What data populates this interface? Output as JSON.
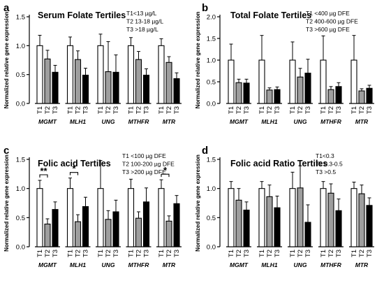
{
  "figure": {
    "ylabel": "Normalized relative gene expression",
    "gene_labels": [
      "MGMT",
      "MLH1",
      "UNG",
      "MTHFR",
      "MTR"
    ],
    "tertile_labels": [
      "T1",
      "T2",
      "T3"
    ],
    "colors": {
      "T1": "#ffffff",
      "T2": "#9e9e9e",
      "T3": "#000000",
      "stroke": "#000000"
    }
  },
  "chart_data": [
    {
      "type": "bar",
      "panel_label": "a",
      "title": "Serum Folate Tertiles",
      "legend_lines": [
        "T1<13 µg/L",
        "T2 13-18 µg/L",
        "T3 >18 µg/L"
      ],
      "ylabel": "Normalized relative gene expression",
      "ylim": [
        0,
        1.5
      ],
      "yticks": [
        "0.0",
        "0.5",
        "1.0",
        "1.5"
      ],
      "categories": [
        "MGMT",
        "MLH1",
        "UNG",
        "MTHFR",
        "MTR"
      ],
      "series": [
        {
          "values": [
            1.0,
            1.0,
            1.0,
            1.0,
            1.0
          ],
          "errors": [
            0.18,
            0.15,
            0.2,
            0.14,
            0.12
          ]
        },
        {
          "values": [
            0.77,
            0.76,
            0.55,
            0.76,
            0.71
          ],
          "errors": [
            0.15,
            0.15,
            0.52,
            0.14,
            0.1
          ]
        },
        {
          "values": [
            0.54,
            0.49,
            0.54,
            0.49,
            0.43
          ],
          "errors": [
            0.12,
            0.12,
            0.3,
            0.11,
            0.1
          ]
        }
      ],
      "significance": []
    },
    {
      "type": "bar",
      "panel_label": "b",
      "title": "Total Folate Tertiles",
      "legend_lines": [
        "T1 <400 µg DFE",
        "T2 400-600 µg DFE",
        "T3 >600 µg DFE"
      ],
      "ylabel": "Normalized relative gene expression",
      "ylim": [
        0,
        2.0
      ],
      "yticks": [
        "0.0",
        "0.5",
        "1.0",
        "1.5",
        "2.0"
      ],
      "categories": [
        "MGMT",
        "MLH1",
        "UNG",
        "MTHFR",
        "MTR"
      ],
      "series": [
        {
          "values": [
            1.0,
            1.0,
            1.0,
            1.0,
            1.0
          ],
          "errors": [
            0.37,
            0.57,
            0.42,
            0.56,
            0.57
          ]
        },
        {
          "values": [
            0.48,
            0.31,
            0.61,
            0.32,
            0.29
          ],
          "errors": [
            0.08,
            0.05,
            0.2,
            0.07,
            0.05
          ]
        },
        {
          "values": [
            0.47,
            0.32,
            0.7,
            0.39,
            0.35
          ],
          "errors": [
            0.09,
            0.06,
            0.32,
            0.09,
            0.07
          ]
        }
      ],
      "significance": []
    },
    {
      "type": "bar",
      "panel_label": "c",
      "title": "Folic acid Tertiles",
      "legend_lines": [
        "T1 <100 µg DFE",
        "T2 100-200 µg DFE",
        "T3 >200 µg DFE"
      ],
      "ylabel": "Normalized relative gene expression",
      "ylim": [
        0,
        1.5
      ],
      "yticks": [
        "0.0",
        "0.5",
        "1.0",
        "1.5"
      ],
      "categories": [
        "MGMT",
        "MLH1",
        "UNG",
        "MTHFR",
        "MTR"
      ],
      "series": [
        {
          "values": [
            1.0,
            1.0,
            1.0,
            1.0,
            1.0
          ],
          "errors": [
            0.14,
            0.18,
            0.48,
            0.16,
            0.15
          ]
        },
        {
          "values": [
            0.39,
            0.43,
            0.47,
            0.49,
            0.44
          ],
          "errors": [
            0.09,
            0.12,
            0.15,
            0.11,
            0.09
          ]
        },
        {
          "values": [
            0.64,
            0.69,
            0.6,
            0.77,
            0.74
          ],
          "errors": [
            0.13,
            0.16,
            0.2,
            0.24,
            0.14
          ]
        }
      ],
      "significance": [
        {
          "category": 0,
          "label": "**"
        },
        {
          "category": 1,
          "label": "*"
        },
        {
          "category": 4,
          "label": "*"
        }
      ]
    },
    {
      "type": "bar",
      "panel_label": "d",
      "title": "Folic acid Ratio Tertiles",
      "legend_lines": [
        "T1<0.3",
        "T2 0.3-0.5",
        "T3 >0.5"
      ],
      "ylabel": "Normalized relative gene expression",
      "ylim": [
        0,
        1.5
      ],
      "yticks": [
        "0.0",
        "0.5",
        "1.0",
        "1.5"
      ],
      "categories": [
        "MGMT",
        "MLH1",
        "UNG",
        "MTHFR",
        "MTR"
      ],
      "series": [
        {
          "values": [
            1.0,
            1.0,
            1.0,
            1.0,
            1.0
          ],
          "errors": [
            0.12,
            0.12,
            0.28,
            0.12,
            0.11
          ]
        },
        {
          "values": [
            0.8,
            0.86,
            1.01,
            0.92,
            0.91
          ],
          "errors": [
            0.2,
            0.2,
            0.38,
            0.16,
            0.15
          ]
        },
        {
          "values": [
            0.63,
            0.67,
            0.42,
            0.62,
            0.71
          ],
          "errors": [
            0.14,
            0.2,
            0.3,
            0.2,
            0.13
          ]
        }
      ],
      "significance": []
    }
  ]
}
